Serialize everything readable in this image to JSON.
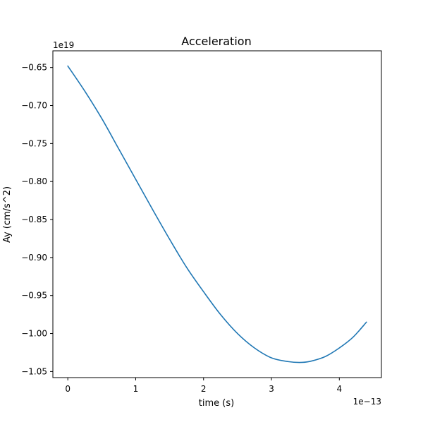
{
  "chart_data": {
    "type": "line",
    "title": "Acceleration",
    "xlabel": "time (s)",
    "ylabel": "Ay (cm/s^2)",
    "x_offset_label": "1e−13",
    "y_offset_label": "1e19",
    "xlim": [
      -0.22,
      4.62
    ],
    "ylim": [
      -1.058,
      -0.628
    ],
    "grid": false,
    "x_ticks": [
      {
        "value": 0,
        "label": "0"
      },
      {
        "value": 1,
        "label": "1"
      },
      {
        "value": 2,
        "label": "2"
      },
      {
        "value": 3,
        "label": "3"
      },
      {
        "value": 4,
        "label": "4"
      }
    ],
    "y_ticks": [
      {
        "value": -0.65,
        "label": "−0.65"
      },
      {
        "value": -0.7,
        "label": "−0.70"
      },
      {
        "value": -0.75,
        "label": "−0.75"
      },
      {
        "value": -0.8,
        "label": "−0.80"
      },
      {
        "value": -0.85,
        "label": "−0.85"
      },
      {
        "value": -0.9,
        "label": "−0.90"
      },
      {
        "value": -0.95,
        "label": "−0.95"
      },
      {
        "value": -1.0,
        "label": "−1.00"
      },
      {
        "value": -1.05,
        "label": "−1.05"
      }
    ],
    "series": [
      {
        "color": "#1f77b4",
        "x": [
          0.0,
          0.25,
          0.5,
          0.75,
          1.0,
          1.25,
          1.5,
          1.75,
          2.0,
          2.25,
          2.5,
          2.75,
          3.0,
          3.25,
          3.45,
          3.6,
          3.8,
          4.0,
          4.2,
          4.4
        ],
        "y": [
          -0.648,
          -0.681,
          -0.717,
          -0.757,
          -0.797,
          -0.837,
          -0.876,
          -0.913,
          -0.945,
          -0.975,
          -1.0,
          -1.019,
          -1.032,
          -1.037,
          -1.038,
          -1.036,
          -1.03,
          -1.019,
          -1.005,
          -0.985
        ]
      }
    ]
  }
}
